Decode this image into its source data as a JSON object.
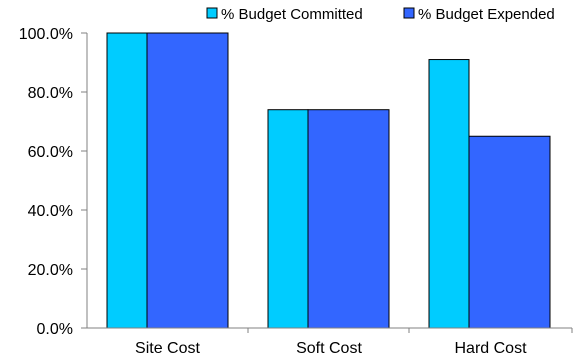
{
  "chart_data": {
    "type": "bar",
    "categories": [
      "Site Cost",
      "Soft Cost",
      "Hard Cost"
    ],
    "series": [
      {
        "name": "% Budget Committed",
        "color": "#00CCFF",
        "values": [
          100.0,
          74.0,
          91.0
        ]
      },
      {
        "name": "% Budget Expended",
        "color": "#3366FF",
        "values": [
          100.0,
          74.0,
          65.0
        ]
      }
    ],
    "ylim": [
      0,
      100
    ],
    "yticks": [
      "0.0%",
      "20.0%",
      "40.0%",
      "60.0%",
      "80.0%",
      "100.0%"
    ],
    "ytick_values": [
      0,
      20,
      40,
      60,
      80,
      100
    ],
    "legend_position": "top-right",
    "grid": false,
    "title": "",
    "xlabel": "",
    "ylabel": ""
  }
}
